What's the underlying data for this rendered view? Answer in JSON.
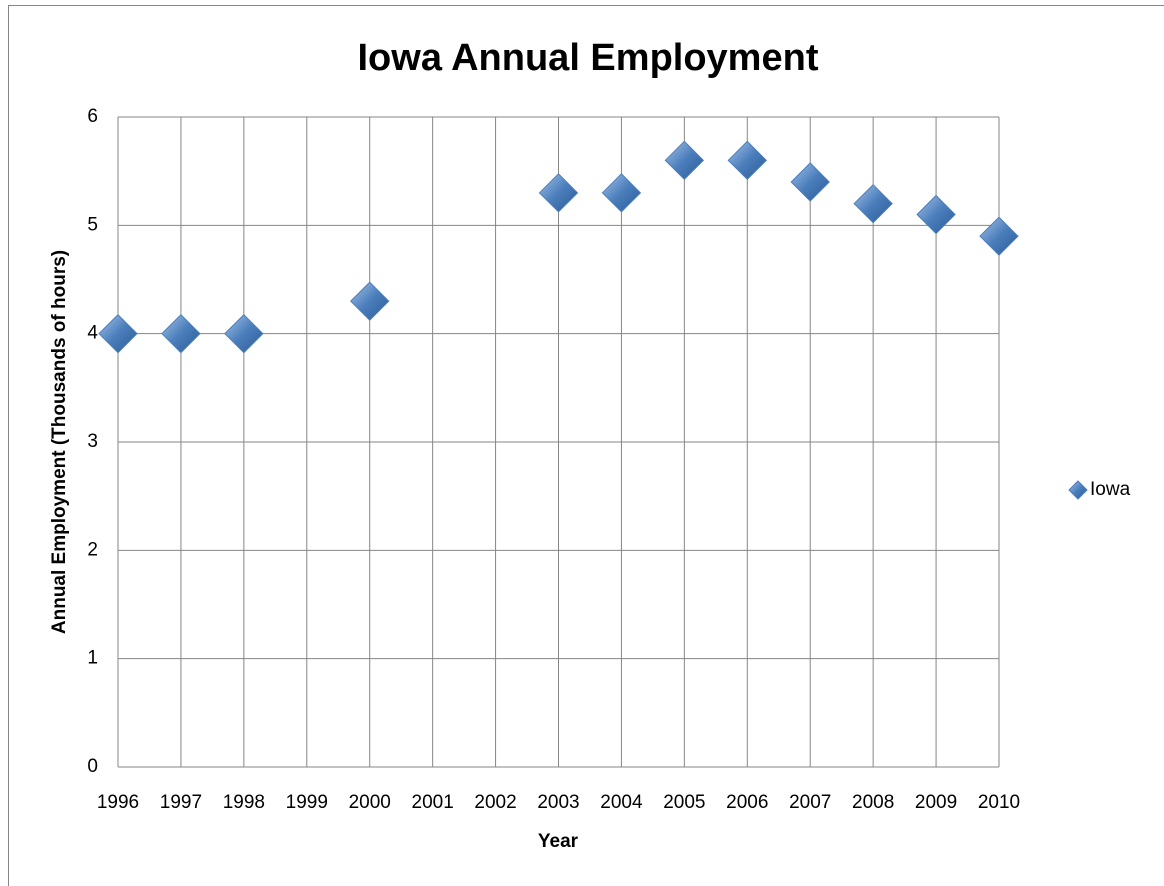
{
  "chart_data": {
    "type": "scatter",
    "title": "Iowa Annual Employment",
    "xlabel": "Year",
    "ylabel": "Annual Employment (Thousands of hours)",
    "series": [
      {
        "name": "Iowa",
        "color": "#4a7ebb",
        "x": [
          1996,
          1997,
          1998,
          2000,
          2003,
          2004,
          2005,
          2006,
          2007,
          2008,
          2009,
          2010
        ],
        "values": [
          4,
          4,
          4,
          4.3,
          5.3,
          5.3,
          5.6,
          5.6,
          5.4,
          5.2,
          5.1,
          4.9
        ]
      }
    ],
    "xlim": [
      1996,
      2010
    ],
    "xticks": [
      1996,
      1997,
      1998,
      1999,
      2000,
      2001,
      2002,
      2003,
      2004,
      2005,
      2006,
      2007,
      2008,
      2009,
      2010
    ],
    "ylim": [
      0,
      6
    ],
    "yticks": [
      0,
      1,
      2,
      3,
      4,
      5,
      6
    ],
    "grid": true,
    "legend": "right"
  }
}
